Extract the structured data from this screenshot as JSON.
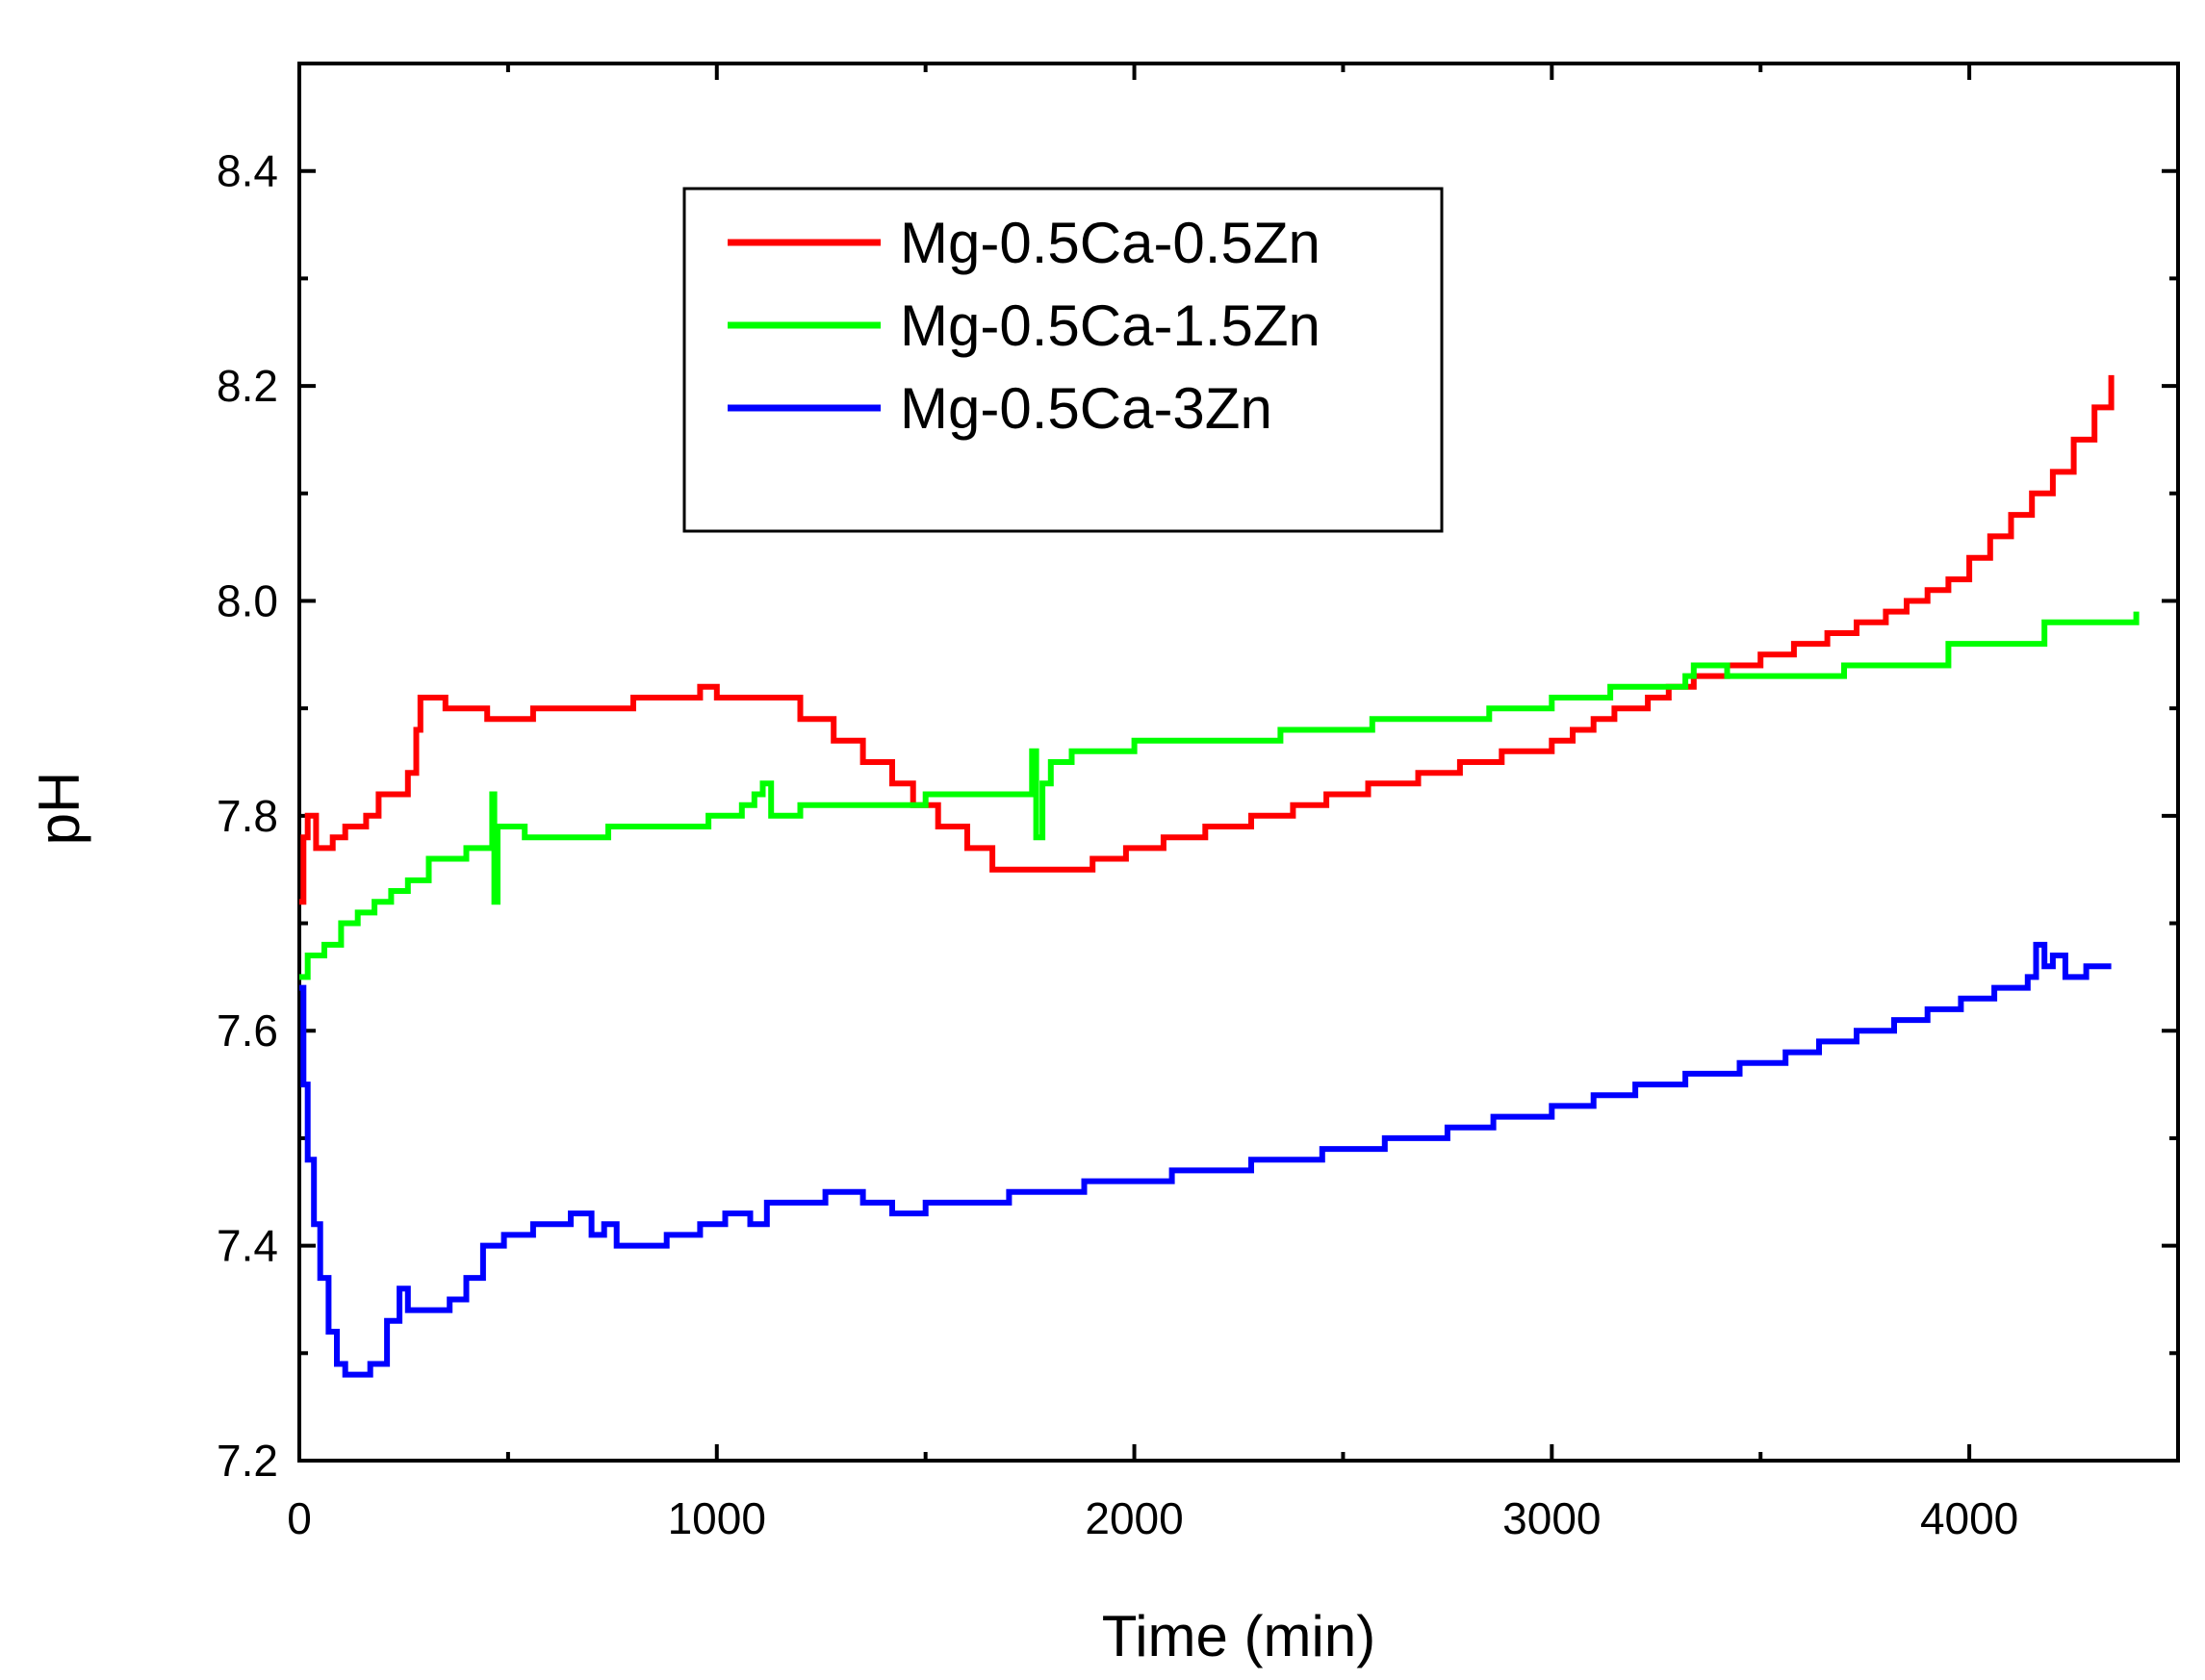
{
  "chart_data": {
    "type": "line",
    "xlabel": "Time (min)",
    "ylabel": "pH",
    "xlim": [
      0,
      4500
    ],
    "ylim": [
      7.2,
      8.5
    ],
    "x_ticks": [
      0,
      1000,
      2000,
      3000,
      4000
    ],
    "x_tick_labels": [
      "0",
      "1000",
      "2000",
      "3000",
      "4000"
    ],
    "y_ticks": [
      7.2,
      7.4,
      7.6,
      7.8,
      8.0,
      8.2,
      8.4
    ],
    "y_tick_labels": [
      "7.2",
      "7.4",
      "7.6",
      "7.8",
      "8.0",
      "8.2",
      "8.4"
    ],
    "grid": false,
    "legend_position": "top-center",
    "series": [
      {
        "name": "Mg-0.5Ca-0.5Zn",
        "color": "#ff0000",
        "points": [
          [
            0,
            7.72
          ],
          [
            10,
            7.78
          ],
          [
            20,
            7.8
          ],
          [
            40,
            7.77
          ],
          [
            80,
            7.78
          ],
          [
            110,
            7.79
          ],
          [
            160,
            7.8
          ],
          [
            190,
            7.82
          ],
          [
            240,
            7.82
          ],
          [
            260,
            7.84
          ],
          [
            280,
            7.88
          ],
          [
            290,
            7.91
          ],
          [
            350,
            7.9
          ],
          [
            450,
            7.89
          ],
          [
            560,
            7.9
          ],
          [
            700,
            7.9
          ],
          [
            800,
            7.91
          ],
          [
            960,
            7.92
          ],
          [
            1000,
            7.91
          ],
          [
            1170,
            7.91
          ],
          [
            1200,
            7.89
          ],
          [
            1280,
            7.87
          ],
          [
            1350,
            7.85
          ],
          [
            1420,
            7.83
          ],
          [
            1470,
            7.81
          ],
          [
            1530,
            7.79
          ],
          [
            1600,
            7.77
          ],
          [
            1660,
            7.75
          ],
          [
            1700,
            7.75
          ],
          [
            1850,
            7.75
          ],
          [
            1900,
            7.76
          ],
          [
            1980,
            7.77
          ],
          [
            2070,
            7.78
          ],
          [
            2170,
            7.79
          ],
          [
            2280,
            7.8
          ],
          [
            2380,
            7.81
          ],
          [
            2460,
            7.82
          ],
          [
            2560,
            7.83
          ],
          [
            2680,
            7.84
          ],
          [
            2780,
            7.85
          ],
          [
            2880,
            7.86
          ],
          [
            3000,
            7.87
          ],
          [
            3050,
            7.88
          ],
          [
            3100,
            7.89
          ],
          [
            3150,
            7.9
          ],
          [
            3230,
            7.91
          ],
          [
            3280,
            7.92
          ],
          [
            3340,
            7.93
          ],
          [
            3420,
            7.94
          ],
          [
            3500,
            7.95
          ],
          [
            3580,
            7.96
          ],
          [
            3660,
            7.97
          ],
          [
            3730,
            7.98
          ],
          [
            3800,
            7.99
          ],
          [
            3850,
            8.0
          ],
          [
            3900,
            8.01
          ],
          [
            3950,
            8.02
          ],
          [
            4000,
            8.04
          ],
          [
            4050,
            8.06
          ],
          [
            4100,
            8.08
          ],
          [
            4150,
            8.1
          ],
          [
            4200,
            8.12
          ],
          [
            4250,
            8.15
          ],
          [
            4300,
            8.18
          ],
          [
            4340,
            8.21
          ]
        ]
      },
      {
        "name": "Mg-0.5Ca-1.5Zn",
        "color": "#00ff00",
        "points": [
          [
            0,
            7.65
          ],
          [
            20,
            7.67
          ],
          [
            60,
            7.68
          ],
          [
            100,
            7.7
          ],
          [
            140,
            7.71
          ],
          [
            180,
            7.72
          ],
          [
            220,
            7.73
          ],
          [
            260,
            7.74
          ],
          [
            310,
            7.76
          ],
          [
            400,
            7.77
          ],
          [
            455,
            7.77
          ],
          [
            462,
            7.82
          ],
          [
            467,
            7.72
          ],
          [
            475,
            7.79
          ],
          [
            540,
            7.78
          ],
          [
            600,
            7.78
          ],
          [
            740,
            7.79
          ],
          [
            980,
            7.8
          ],
          [
            1060,
            7.81
          ],
          [
            1090,
            7.82
          ],
          [
            1110,
            7.83
          ],
          [
            1130,
            7.8
          ],
          [
            1200,
            7.81
          ],
          [
            1480,
            7.81
          ],
          [
            1500,
            7.82
          ],
          [
            1740,
            7.82
          ],
          [
            1755,
            7.86
          ],
          [
            1765,
            7.78
          ],
          [
            1780,
            7.83
          ],
          [
            1800,
            7.85
          ],
          [
            1850,
            7.86
          ],
          [
            2000,
            7.87
          ],
          [
            2350,
            7.88
          ],
          [
            2570,
            7.89
          ],
          [
            2850,
            7.9
          ],
          [
            3000,
            7.91
          ],
          [
            3140,
            7.92
          ],
          [
            3320,
            7.93
          ],
          [
            3340,
            7.94
          ],
          [
            3420,
            7.93
          ],
          [
            3700,
            7.94
          ],
          [
            3950,
            7.96
          ],
          [
            4180,
            7.98
          ],
          [
            4400,
            7.99
          ]
        ]
      },
      {
        "name": "Mg-0.5Ca-3Zn",
        "color": "#0000ff",
        "points": [
          [
            0,
            7.64
          ],
          [
            10,
            7.55
          ],
          [
            20,
            7.48
          ],
          [
            35,
            7.42
          ],
          [
            50,
            7.37
          ],
          [
            70,
            7.32
          ],
          [
            90,
            7.29
          ],
          [
            110,
            7.28
          ],
          [
            170,
            7.29
          ],
          [
            210,
            7.33
          ],
          [
            240,
            7.36
          ],
          [
            260,
            7.34
          ],
          [
            320,
            7.34
          ],
          [
            360,
            7.35
          ],
          [
            400,
            7.37
          ],
          [
            440,
            7.4
          ],
          [
            490,
            7.41
          ],
          [
            560,
            7.42
          ],
          [
            650,
            7.43
          ],
          [
            700,
            7.41
          ],
          [
            730,
            7.42
          ],
          [
            760,
            7.4
          ],
          [
            880,
            7.41
          ],
          [
            960,
            7.42
          ],
          [
            1020,
            7.43
          ],
          [
            1080,
            7.42
          ],
          [
            1120,
            7.44
          ],
          [
            1200,
            7.44
          ],
          [
            1260,
            7.45
          ],
          [
            1350,
            7.44
          ],
          [
            1420,
            7.43
          ],
          [
            1500,
            7.44
          ],
          [
            1700,
            7.45
          ],
          [
            1880,
            7.46
          ],
          [
            2090,
            7.47
          ],
          [
            2280,
            7.48
          ],
          [
            2450,
            7.49
          ],
          [
            2600,
            7.5
          ],
          [
            2750,
            7.51
          ],
          [
            2860,
            7.52
          ],
          [
            3000,
            7.53
          ],
          [
            3100,
            7.54
          ],
          [
            3200,
            7.55
          ],
          [
            3320,
            7.56
          ],
          [
            3450,
            7.57
          ],
          [
            3560,
            7.58
          ],
          [
            3640,
            7.59
          ],
          [
            3730,
            7.6
          ],
          [
            3820,
            7.61
          ],
          [
            3900,
            7.62
          ],
          [
            3980,
            7.63
          ],
          [
            4060,
            7.64
          ],
          [
            4140,
            7.65
          ],
          [
            4160,
            7.68
          ],
          [
            4180,
            7.66
          ],
          [
            4200,
            7.67
          ],
          [
            4230,
            7.65
          ],
          [
            4280,
            7.66
          ],
          [
            4340,
            7.66
          ]
        ]
      }
    ]
  }
}
